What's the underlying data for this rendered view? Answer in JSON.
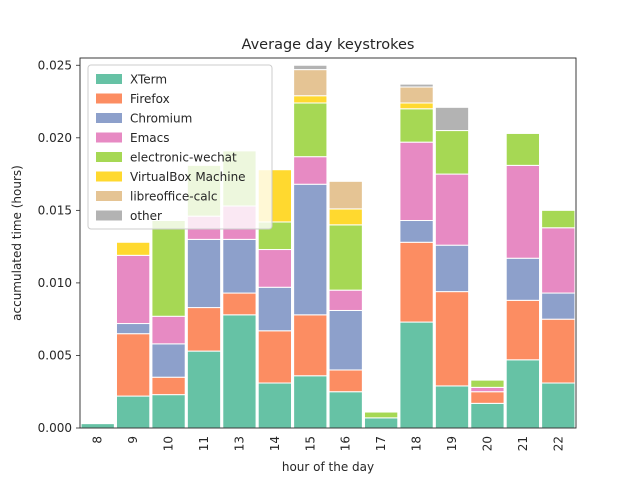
{
  "chart_data": {
    "type": "bar",
    "stacked": true,
    "title": "Average day keystrokes",
    "xlabel": "hour of the day",
    "ylabel": "accumulated time (hours)",
    "ylim": [
      0,
      0.0255
    ],
    "yticks": [
      "0.000",
      "0.005",
      "0.010",
      "0.015",
      "0.020",
      "0.025"
    ],
    "ytick_values": [
      0,
      0.005,
      0.01,
      0.015,
      0.02,
      0.025
    ],
    "categories": [
      "8",
      "9",
      "10",
      "11",
      "13",
      "14",
      "15",
      "16",
      "17",
      "18",
      "19",
      "20",
      "21",
      "22"
    ],
    "legend_position": "top-left",
    "series": [
      {
        "name": "XTerm",
        "color": "#66c2a5",
        "values": [
          0.0003,
          0.0022,
          0.0023,
          0.0053,
          0.0078,
          0.0031,
          0.0036,
          0.0025,
          0.0007,
          0.0073,
          0.0029,
          0.0017,
          0.0047,
          0.0031
        ]
      },
      {
        "name": "Firefox",
        "color": "#fc8d62",
        "values": [
          0,
          0.0043,
          0.0012,
          0.003,
          0.0015,
          0.0036,
          0.0042,
          0.0015,
          0,
          0.0055,
          0.0065,
          0.0008,
          0.0041,
          0.0044
        ]
      },
      {
        "name": "Chromium",
        "color": "#8da0cb",
        "values": [
          0,
          0.0007,
          0.0023,
          0.0047,
          0.0037,
          0.003,
          0.009,
          0.0041,
          0,
          0.0015,
          0.0032,
          0,
          0.0029,
          0.0018
        ]
      },
      {
        "name": "Emacs",
        "color": "#e78ac3",
        "values": [
          0,
          0.0047,
          0.0019,
          0.0016,
          0.0023,
          0.0026,
          0.0019,
          0.0014,
          0,
          0.0054,
          0.0049,
          0.0003,
          0.0064,
          0.0045
        ]
      },
      {
        "name": "electronic-wechat",
        "color": "#a6d854",
        "values": [
          0,
          0,
          0.0066,
          0.0035,
          0.0038,
          0.0019,
          0.0037,
          0.0045,
          0.0004,
          0.0023,
          0.003,
          0.0005,
          0.0022,
          0.0012
        ]
      },
      {
        "name": "VirtualBox Machine",
        "color": "#ffd92f",
        "values": [
          0,
          0.0009,
          0,
          0,
          0,
          0.0036,
          0.0005,
          0.0011,
          0,
          0.0004,
          0,
          0,
          0,
          0
        ]
      },
      {
        "name": "libreoffice-calc",
        "color": "#e5c494",
        "values": [
          0,
          0,
          0,
          0,
          0,
          0,
          0.0018,
          0.0019,
          0,
          0.0011,
          0,
          0,
          0,
          0
        ]
      },
      {
        "name": "other",
        "color": "#b3b3b3",
        "values": [
          0,
          0,
          0,
          0,
          0,
          0,
          0.0003,
          0,
          0,
          0.0002,
          0.0016,
          0,
          0,
          0
        ]
      }
    ]
  }
}
